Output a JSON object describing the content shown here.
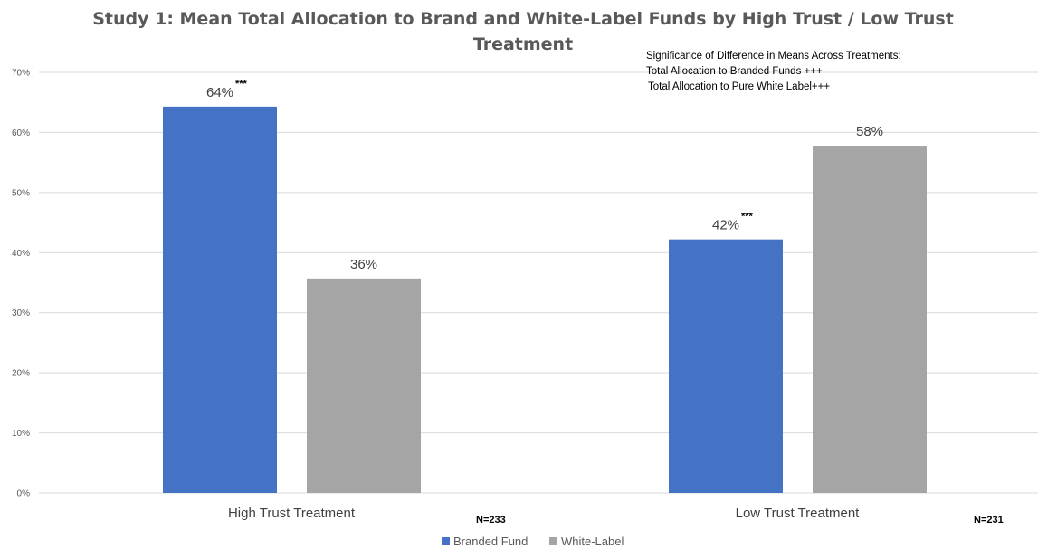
{
  "chart_data": {
    "type": "bar",
    "title_line1": "Study 1: Mean Total Allocation to Brand and White-Label Funds by High Trust / Low Trust",
    "title_line2": "Treatment",
    "categories": [
      "High Trust Treatment",
      "Low Trust Treatment"
    ],
    "series": [
      {
        "name": "Branded Fund",
        "color": "#4472c4",
        "values": [
          64.3,
          42.2
        ],
        "labels": [
          "64%",
          "42%"
        ],
        "stars": [
          "***",
          "***"
        ]
      },
      {
        "name": "White-Label",
        "color": "#a5a5a5",
        "values": [
          35.7,
          57.8
        ],
        "labels": [
          "36%",
          "58%"
        ],
        "stars": [
          "",
          ""
        ]
      }
    ],
    "ylim": [
      0,
      70
    ],
    "yticks": [
      0,
      10,
      20,
      30,
      40,
      50,
      60,
      70
    ],
    "ytick_labels": [
      "0%",
      "10%",
      "20%",
      "30%",
      "40%",
      "50%",
      "60%",
      "70%"
    ],
    "grid": true,
    "legend_position": "bottom",
    "sample_sizes": [
      "N=233",
      "N=231"
    ],
    "annotation": [
      "Significance of Difference in Means Across Treatments:",
      "Total Allocation to Branded Funds +++",
      "Total  Allocation to  Pure White Label+++"
    ]
  }
}
